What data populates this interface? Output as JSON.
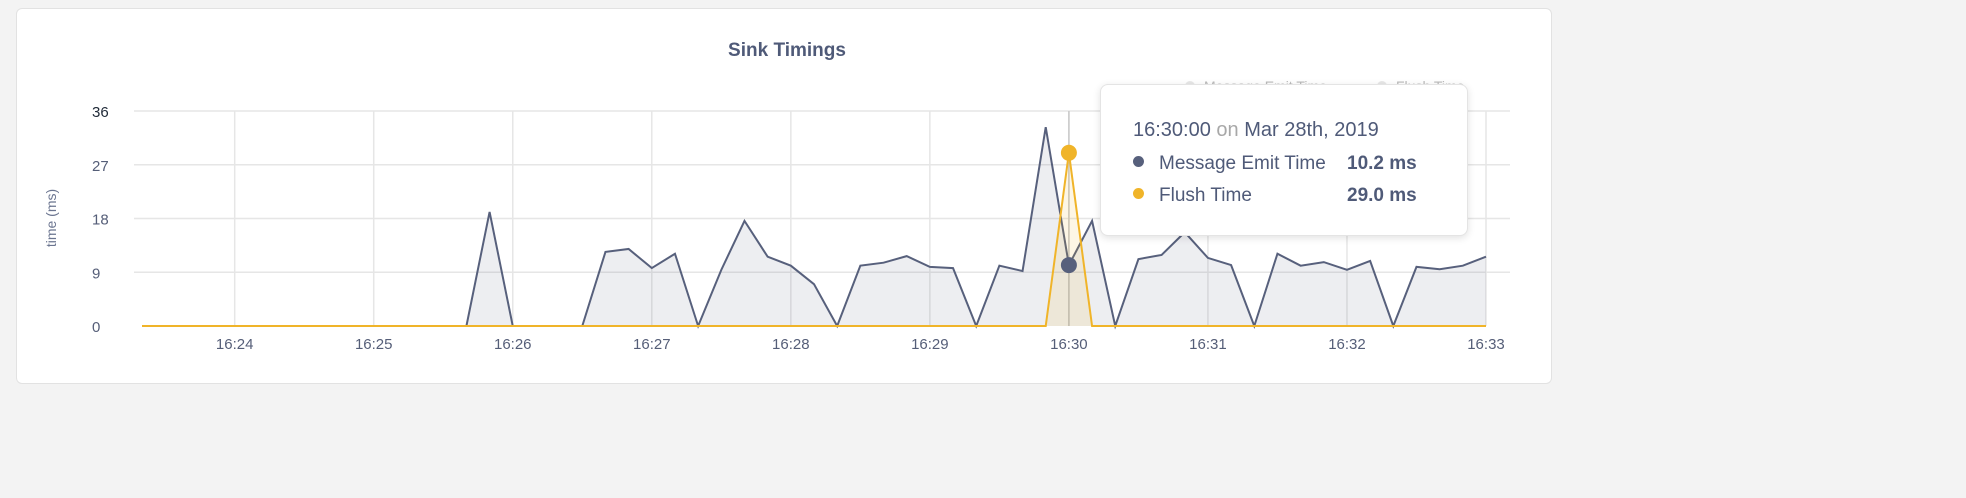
{
  "chart_data": {
    "type": "area",
    "title": "Sink Timings",
    "ylabel": "time (ms)",
    "xlabel": "",
    "ylim": [
      0,
      36
    ],
    "yticks": [
      "0",
      "9",
      "18",
      "27",
      "36"
    ],
    "xticks": [
      "16:24",
      "16:25",
      "16:26",
      "16:27",
      "16:28",
      "16:29",
      "16:30",
      "16:31",
      "16:32",
      "16:33"
    ],
    "x_start": "16:23:20",
    "x_end": "16:33:00",
    "x_step_seconds": 10,
    "grid": true,
    "legend_placement": "top-right",
    "series": [
      {
        "name": "Message Emit Time",
        "color": "#57607c",
        "values": [
          0,
          0,
          0,
          0,
          0,
          0,
          0,
          0,
          0,
          0,
          0,
          0,
          0,
          0,
          0,
          19.1,
          0,
          0,
          0,
          0,
          12.4,
          12.9,
          9.7,
          12.1,
          0,
          9.4,
          17.6,
          11.6,
          10.1,
          7.0,
          0,
          10.1,
          10.6,
          11.7,
          9.9,
          9.7,
          0,
          10.1,
          9.2,
          33.3,
          10.2,
          17.6,
          0,
          11.2,
          11.9,
          15.7,
          11.4,
          10.2,
          0,
          12.1,
          10.1,
          10.7,
          9.4,
          10.9,
          0,
          9.9,
          9.5,
          10.1,
          11.6
        ]
      },
      {
        "name": "Flush Time",
        "color": "#f0b429",
        "values": [
          0,
          0,
          0,
          0,
          0,
          0,
          0,
          0,
          0,
          0,
          0,
          0,
          0,
          0,
          0,
          0,
          0,
          0,
          0,
          0,
          0,
          0,
          0,
          0,
          0,
          0,
          0,
          0,
          0,
          0,
          0,
          0,
          0,
          0,
          0,
          0,
          0,
          0,
          0,
          0,
          29.0,
          0,
          0,
          0,
          0,
          0,
          0,
          0,
          0,
          0,
          0,
          0,
          0,
          0,
          0,
          0,
          0,
          0,
          0
        ]
      }
    ]
  },
  "tooltip": {
    "time": "16:30:00",
    "on": "on",
    "date": "Mar 28th, 2019",
    "rows": [
      {
        "label": "Message Emit Time",
        "value": "10.2 ms",
        "color": "#57607c"
      },
      {
        "label": "Flush Time",
        "value": "29.0 ms",
        "color": "#f0b429"
      }
    ]
  }
}
